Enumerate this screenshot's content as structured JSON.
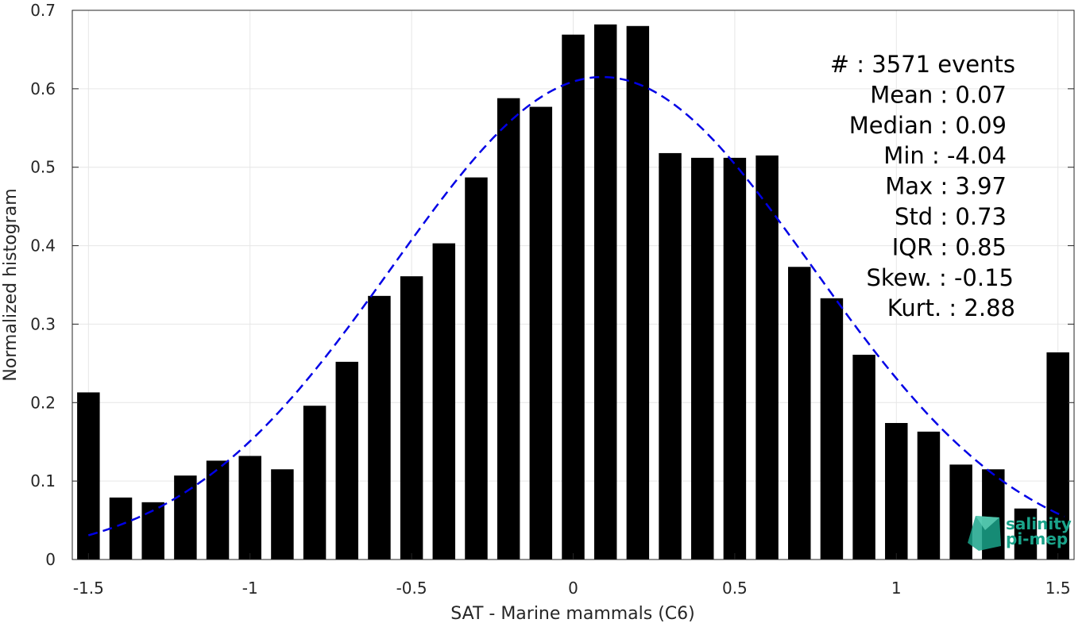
{
  "chart_data": {
    "type": "bar",
    "xlabel": "SAT - Marine mammals (C6)",
    "ylabel": "Normalized histogram",
    "xlim": [
      -1.55,
      1.55
    ],
    "ylim": [
      0,
      0.7
    ],
    "grid": true,
    "x_ticks": [
      -1.5,
      -1,
      -0.5,
      0,
      0.5,
      1,
      1.5
    ],
    "x_tick_labels": [
      "-1.5",
      "-1",
      "-0.5",
      "0",
      "0.5",
      "1",
      "1.5"
    ],
    "y_ticks": [
      0,
      0.1,
      0.2,
      0.3,
      0.4,
      0.5,
      0.6,
      0.7
    ],
    "y_tick_labels": [
      "0",
      "0.1",
      "0.2",
      "0.3",
      "0.4",
      "0.5",
      "0.6",
      "0.7"
    ],
    "bar_color": "#000000",
    "bar_width": 0.07,
    "x": [
      -1.5,
      -1.4,
      -1.3,
      -1.2,
      -1.1,
      -1.0,
      -0.9,
      -0.8,
      -0.7,
      -0.6,
      -0.5,
      -0.4,
      -0.3,
      -0.2,
      -0.1,
      0.0,
      0.1,
      0.2,
      0.3,
      0.4,
      0.5,
      0.6,
      0.7,
      0.8,
      0.9,
      1.0,
      1.1,
      1.2,
      1.3,
      1.4,
      1.5
    ],
    "values": [
      0.213,
      0.079,
      0.073,
      0.107,
      0.126,
      0.132,
      0.115,
      0.196,
      0.252,
      0.336,
      0.361,
      0.403,
      0.487,
      0.588,
      0.577,
      0.669,
      0.682,
      0.68,
      0.518,
      0.512,
      0.512,
      0.515,
      0.373,
      0.333,
      0.261,
      0.174,
      0.163,
      0.121,
      0.115,
      0.065,
      0.264
    ],
    "fit": {
      "type": "gaussian",
      "mean": 0.09,
      "peak": 0.615,
      "sigma": 0.65,
      "x_range": [
        -1.5,
        1.52
      ],
      "color": "#0000e6",
      "style": "dashed"
    },
    "stats": [
      "#  : 3571 events",
      "Mean : 0.07",
      "Median : 0.09",
      "Min : -4.04",
      "Max : 3.97",
      "Std : 0.73",
      "IQR : 0.85",
      "Skew. : -0.15",
      "Kurt. : 2.88"
    ],
    "legend_placement": "top-right"
  },
  "logo": {
    "line1": "salinity",
    "line2": "pi-mep",
    "color": "#1aa38a"
  }
}
